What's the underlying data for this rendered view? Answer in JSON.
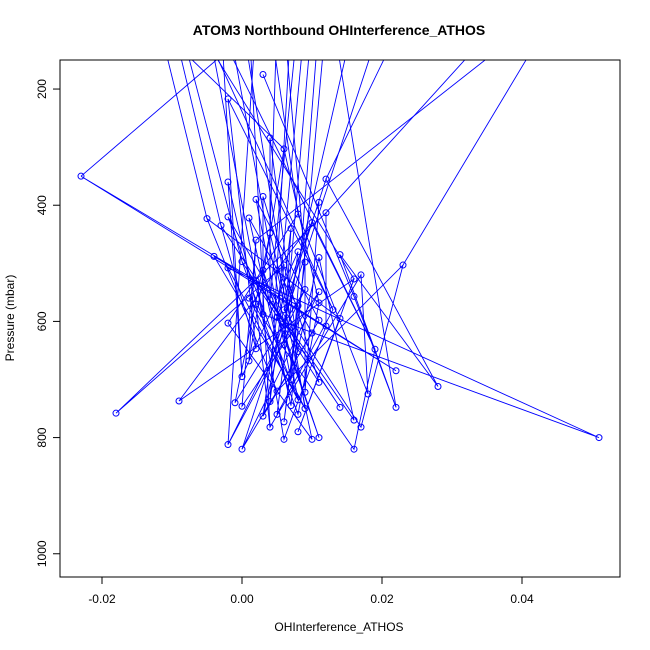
{
  "chart_data": {
    "type": "line",
    "title": "ATOM3 Northbound OHInterference_ATHOS",
    "xlabel": "OHInterference_ATHOS",
    "ylabel": "Pressure (mbar)",
    "xlim": [
      -0.026,
      0.054
    ],
    "ylim": [
      1040,
      150
    ],
    "y_reversed": true,
    "x_ticks": [
      -0.02,
      0.0,
      0.02,
      0.04
    ],
    "x_tick_labels": [
      "-0.02",
      "0.00",
      "0.02",
      "0.04"
    ],
    "y_ticks": [
      200,
      400,
      600,
      800,
      1000
    ],
    "y_tick_labels": [
      "200",
      "400",
      "600",
      "800",
      "1000"
    ],
    "grid": false,
    "legend": "none",
    "line_color": "#0000ff",
    "marker": "open-circle",
    "series": [
      {
        "x": [
          0.003,
          -0.002,
          0.004,
          0.006,
          -0.023,
          0.012,
          -0.002,
          0.002,
          0.003,
          0.011,
          -0.005,
          0.008,
          0.012,
          -0.002,
          0.001,
          0.01,
          0.007,
          -0.003,
          0.004,
          0.002,
          -0.004,
          0.014,
          0.008,
          0.011,
          0.0,
          0.009,
          0.023,
          0.017,
          0.006,
          -0.002,
          0.003,
          0.016,
          0.005,
          0.002,
          0.009,
          0.011,
          0.001,
          0.016,
          0.013,
          0.004,
          0.011,
          0.008,
          0.006,
          0.002,
          0.011,
          0.003,
          0.005,
          0.014,
          -0.002,
          0.012,
          0.007,
          0.01,
          0.019,
          0.006,
          0.002,
          0.008,
          0.001,
          0.022,
          0.028,
          0.0,
          0.007,
          0.011,
          0.009,
          0.005,
          0.018,
          -0.018,
          0.008,
          0.007,
          -0.009,
          0.004,
          0.014,
          -0.001,
          0.0,
          0.009,
          0.022,
          0.005,
          0.016,
          0.008,
          0.006,
          0.017,
          0.004,
          0.003,
          0.051,
          0.011,
          0.008,
          0.01,
          0.006,
          -0.002,
          0.0,
          0.016
        ],
        "y": [
          175,
          217,
          284,
          303,
          350,
          355,
          360,
          390,
          385,
          395,
          423,
          415,
          413,
          420,
          422,
          430,
          440,
          435,
          448,
          460,
          488,
          485,
          480,
          490,
          497,
          498,
          503,
          520,
          503,
          508,
          512,
          527,
          512,
          530,
          545,
          549,
          560,
          557,
          580,
          563,
          568,
          573,
          580,
          570,
          598,
          588,
          593,
          595,
          603,
          608,
          610,
          620,
          648,
          640,
          647,
          652,
          668,
          685,
          712,
          695,
          700,
          705,
          722,
          720,
          725,
          758,
          735,
          745,
          737,
          738,
          748,
          740,
          746,
          750,
          748,
          760,
          770,
          760,
          773,
          782,
          782,
          763,
          800,
          800,
          790,
          803,
          803,
          812,
          820,
          820
        ]
      }
    ],
    "offscale_line_tops_x": [
      -0.013,
      -0.012,
      -0.01,
      -0.009,
      -0.007,
      -0.006,
      -0.005,
      -0.004,
      -0.003,
      -0.002,
      0.0,
      0.001,
      0.002,
      0.003,
      0.004,
      0.005,
      0.006,
      0.007,
      0.008,
      0.009,
      0.01,
      0.011,
      0.012,
      0.013,
      0.016,
      0.02,
      0.023,
      0.037,
      0.042,
      0.044
    ]
  }
}
